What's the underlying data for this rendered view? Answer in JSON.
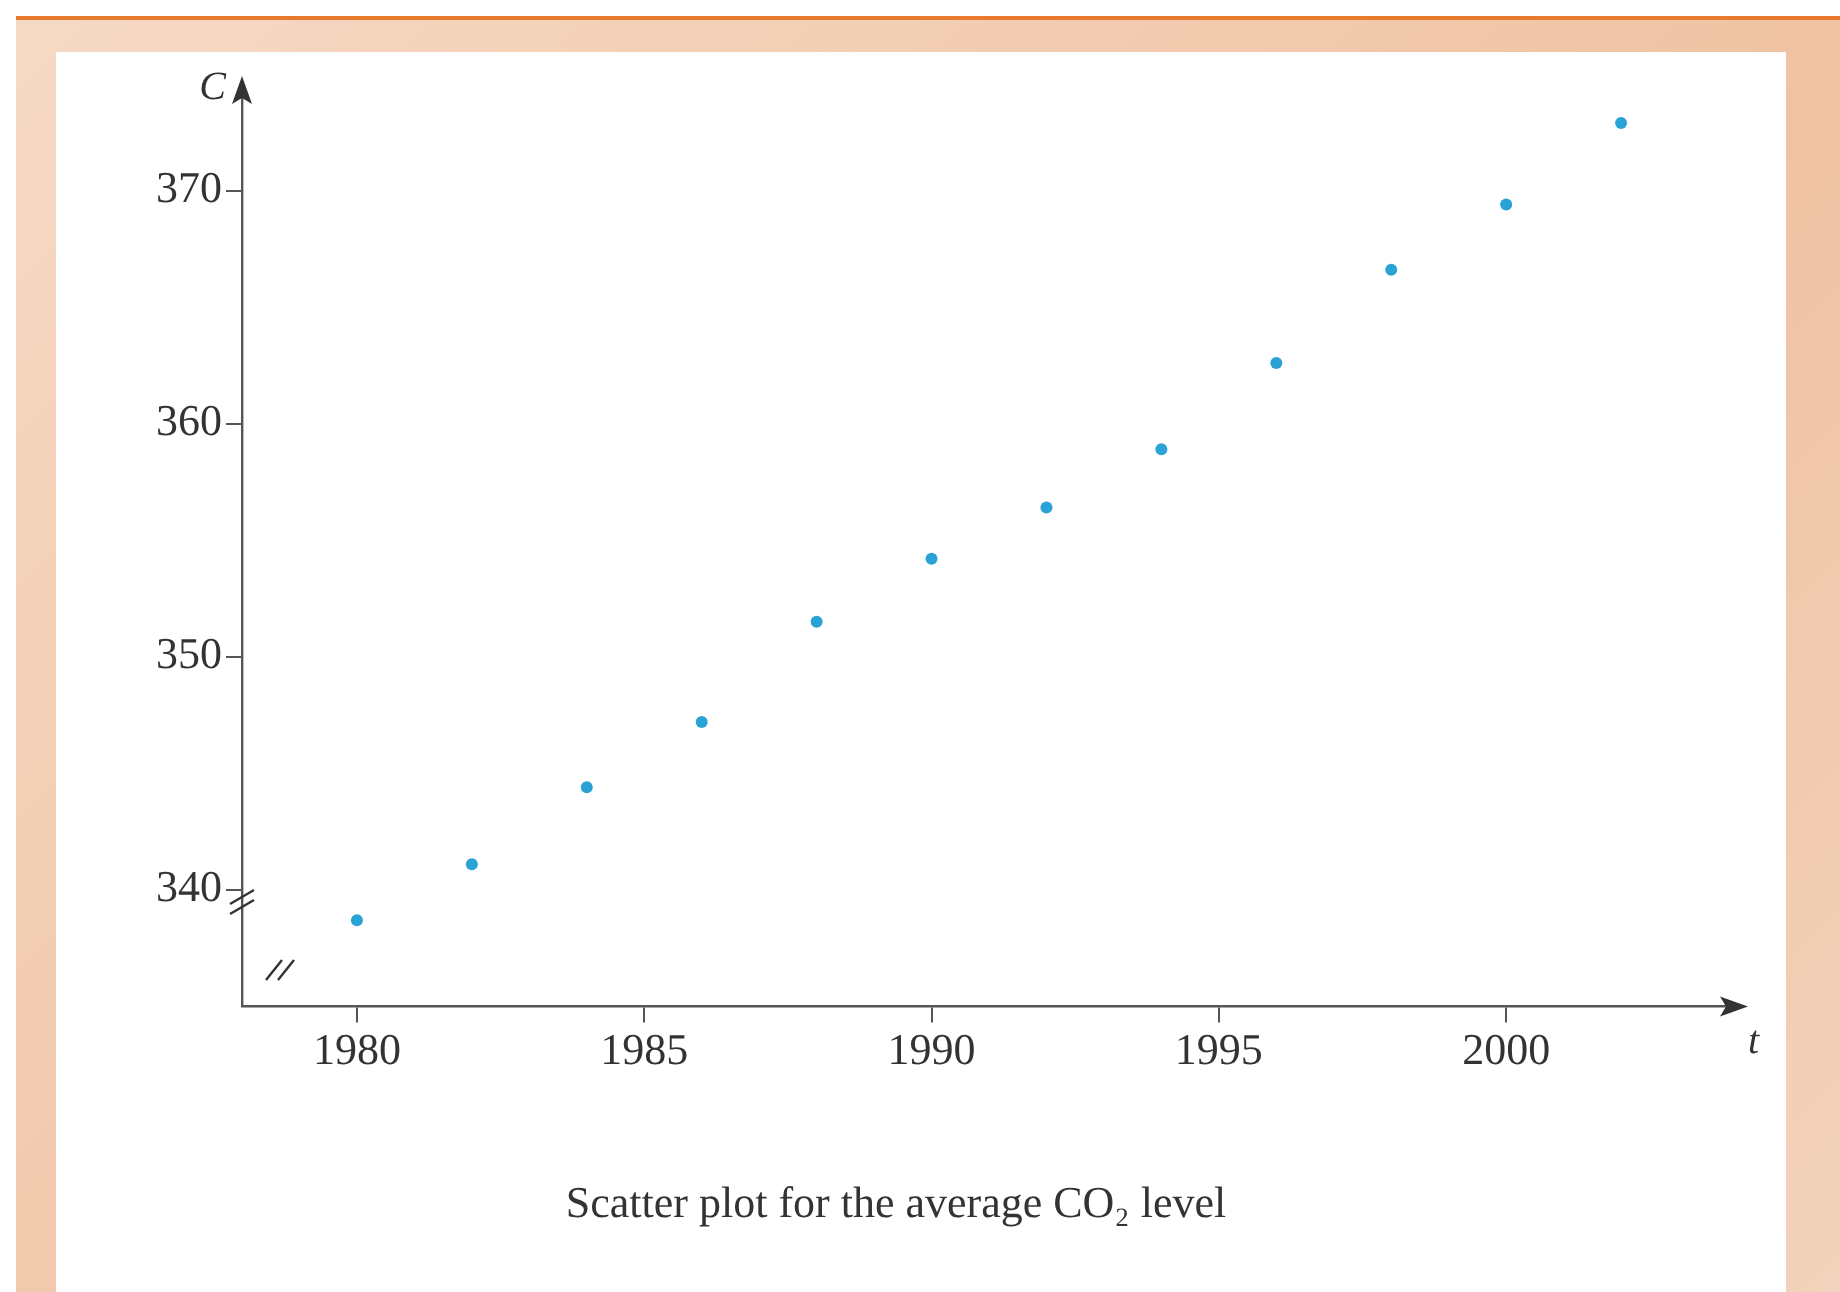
{
  "chart_data": {
    "type": "scatter",
    "title": "Scatter plot for the average CO₂ level",
    "xlabel": "t",
    "ylabel": "C",
    "x": [
      1980,
      1982,
      1984,
      1986,
      1988,
      1990,
      1992,
      1994,
      1996,
      1998,
      2000,
      2002
    ],
    "series": [
      {
        "color": "#29a3d6",
        "values": [
          338.7,
          341.1,
          344.4,
          347.2,
          351.5,
          354.2,
          356.4,
          358.9,
          362.6,
          366.6,
          369.4,
          372.9
        ]
      }
    ],
    "xlim": [
      1978,
      2004
    ],
    "ylim": [
      335,
      374.4
    ],
    "xticks": [
      1980,
      1985,
      1990,
      1995,
      2000
    ],
    "yticks": [
      340,
      350,
      360,
      370
    ],
    "marker": "circle",
    "grid": false,
    "legend": false
  }
}
